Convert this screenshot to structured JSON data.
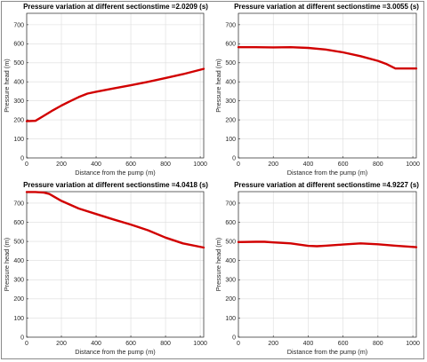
{
  "colors": {
    "line": "#d10000",
    "grid": "#dcdcdc",
    "axis": "#262626"
  },
  "chart_data": [
    {
      "type": "line",
      "title": "Pressure variation at different sectionstime =2.0209 (s)",
      "xlabel": "Distance from the pump (m)",
      "ylabel": "Pressure head (m)",
      "xlim": [
        0,
        1020
      ],
      "ylim": [
        0,
        760
      ],
      "xticks": [
        0,
        200,
        400,
        600,
        800,
        1000
      ],
      "yticks": [
        0,
        100,
        200,
        300,
        400,
        500,
        600,
        700
      ],
      "grid": true,
      "series": [
        {
          "x": [
            0,
            50,
            100,
            150,
            200,
            250,
            300,
            350,
            400,
            500,
            600,
            700,
            800,
            900,
            1020
          ],
          "y": [
            193,
            195,
            222,
            250,
            275,
            298,
            320,
            338,
            348,
            365,
            382,
            400,
            420,
            440,
            468
          ]
        }
      ]
    },
    {
      "type": "line",
      "title": "Pressure variation at different sectionstime =3.0055 (s)",
      "xlabel": "Distance from the pump (m)",
      "ylabel": "Pressure head (m)",
      "xlim": [
        0,
        1020
      ],
      "ylim": [
        0,
        760
      ],
      "xticks": [
        0,
        200,
        400,
        600,
        800,
        1000
      ],
      "yticks": [
        0,
        100,
        200,
        300,
        400,
        500,
        600,
        700
      ],
      "grid": true,
      "series": [
        {
          "x": [
            0,
            100,
            200,
            300,
            400,
            500,
            600,
            700,
            800,
            850,
            900,
            950,
            1020
          ],
          "y": [
            582,
            582,
            581,
            582,
            578,
            570,
            555,
            535,
            510,
            493,
            470,
            470,
            470
          ]
        }
      ]
    },
    {
      "type": "line",
      "title": "Pressure variation at different sectionstime =4.0418 (s)",
      "xlabel": "Distance from the pump (m)",
      "ylabel": "Pressure head (m)",
      "xlim": [
        0,
        1020
      ],
      "ylim": [
        0,
        760
      ],
      "xticks": [
        0,
        200,
        400,
        600,
        800,
        1000
      ],
      "yticks": [
        0,
        100,
        200,
        300,
        400,
        500,
        600,
        700
      ],
      "grid": true,
      "series": [
        {
          "x": [
            0,
            50,
            100,
            130,
            200,
            300,
            400,
            500,
            600,
            700,
            800,
            900,
            1020
          ],
          "y": [
            758,
            758,
            755,
            748,
            712,
            672,
            643,
            615,
            588,
            558,
            520,
            490,
            468
          ]
        }
      ]
    },
    {
      "type": "line",
      "title": "Pressure variation at different sectionstime =4.9227 (s)",
      "xlabel": "Distance from the pump (m)",
      "ylabel": "Pressure head (m)",
      "xlim": [
        0,
        1020
      ],
      "ylim": [
        0,
        760
      ],
      "xticks": [
        0,
        200,
        400,
        600,
        800,
        1000
      ],
      "yticks": [
        0,
        100,
        200,
        300,
        400,
        500,
        600,
        700
      ],
      "grid": true,
      "series": [
        {
          "x": [
            0,
            100,
            150,
            200,
            300,
            400,
            450,
            500,
            600,
            700,
            800,
            900,
            1020
          ],
          "y": [
            497,
            498,
            498,
            495,
            490,
            477,
            475,
            478,
            484,
            490,
            485,
            478,
            470
          ]
        }
      ]
    }
  ]
}
